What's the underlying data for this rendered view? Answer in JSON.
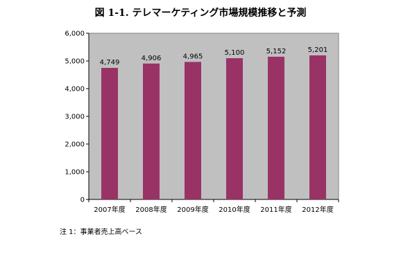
{
  "chart_data": {
    "type": "bar",
    "title": "図 1-1. テレマーケティング市場規模推移と予測",
    "categories": [
      "2007年度",
      "2008年度",
      "2009年度",
      "2010年度",
      "2011年度",
      "2012年度"
    ],
    "values": [
      4749,
      4906,
      4965,
      5100,
      5152,
      5201
    ],
    "value_labels": [
      "4,749",
      "4,906",
      "4,965",
      "5,100",
      "5,152",
      "5,201"
    ],
    "ylim": [
      0,
      6000
    ],
    "yticks": [
      0,
      1000,
      2000,
      3000,
      4000,
      5000,
      6000
    ],
    "ytick_labels": [
      "0",
      "1,000",
      "2,000",
      "3,000",
      "4,000",
      "5,000",
      "6,000"
    ],
    "xlabel": "",
    "ylabel": "",
    "grid": false,
    "legend": "none",
    "bar_color": "#993366",
    "plot_background": "#c0c0c0"
  },
  "note": "注 1：事業者売上高ベース"
}
